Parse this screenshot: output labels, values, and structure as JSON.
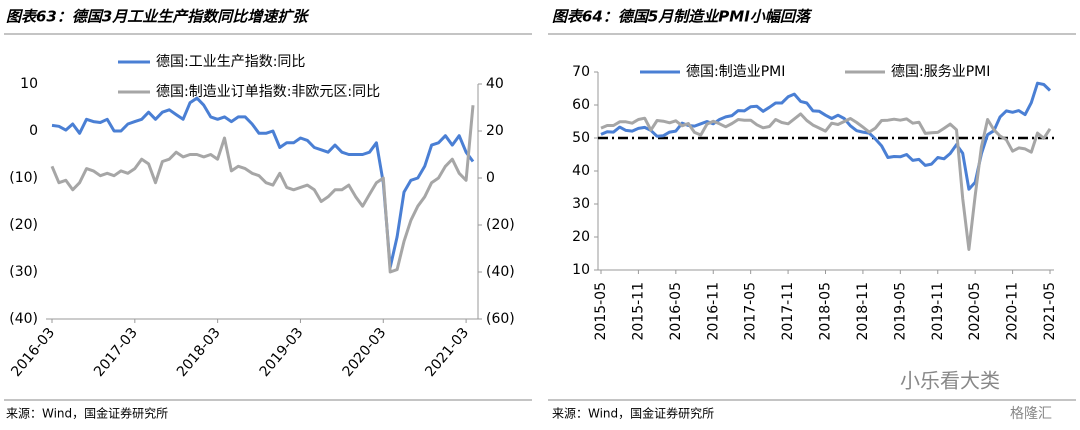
{
  "chart_data": [
    {
      "type": "line",
      "title": "图表63：德国3月工业生产指数同比增速扩张",
      "source": "来源：Wind，国金证券研究所",
      "categories": [
        "2016-03",
        null,
        null,
        null,
        null,
        null,
        null,
        null,
        null,
        null,
        null,
        null,
        "2017-03",
        null,
        null,
        null,
        null,
        null,
        null,
        null,
        null,
        null,
        null,
        null,
        "2018-03",
        null,
        null,
        null,
        null,
        null,
        null,
        null,
        null,
        null,
        null,
        null,
        "2019-03",
        null,
        null,
        null,
        null,
        null,
        null,
        null,
        null,
        null,
        null,
        null,
        "2020-03",
        null,
        null,
        null,
        null,
        null,
        null,
        null,
        null,
        null,
        null,
        null,
        "2021-03",
        null
      ],
      "series": [
        {
          "name": "德国:工业生产指数:同比",
          "color": "#4a7fd4",
          "axis": "y",
          "values": [
            1.2,
            1.0,
            0.2,
            1.5,
            -0.5,
            2.5,
            2.0,
            1.8,
            2.5,
            0.0,
            0.0,
            1.5,
            2.0,
            2.5,
            4.0,
            2.5,
            4.0,
            4.5,
            3.5,
            2.5,
            6.0,
            7.0,
            5.5,
            3.0,
            2.5,
            3.0,
            2.0,
            3.0,
            3.0,
            1.5,
            -0.5,
            -0.5,
            0.0,
            -3.5,
            -2.5,
            -2.5,
            -1.5,
            -2.0,
            -3.5,
            -4.0,
            -4.5,
            -3.0,
            -4.5,
            -5.0,
            -5.0,
            -5.0,
            -4.5,
            -2.5,
            -11.0,
            -29.0,
            -22.5,
            -13.0,
            -10.5,
            -10.0,
            -7.5,
            -3.0,
            -2.5,
            -1.0,
            -3.0,
            -1.0,
            -4.5,
            -6.5
          ]
        },
        {
          "name": "德国:制造业订单指数:非欧元区:同比",
          "color": "#a6a6a6",
          "axis": "y2",
          "values": [
            5,
            -2,
            -1,
            -5,
            -2,
            4,
            3,
            1,
            2,
            1,
            3,
            2,
            4,
            8,
            6,
            -2,
            7,
            8,
            11,
            9,
            10,
            10,
            9,
            10,
            8,
            17,
            3,
            5,
            4,
            2,
            1,
            -2,
            -3,
            2,
            -4,
            -5,
            -4,
            -3,
            -5,
            -10,
            -8,
            -5,
            -5,
            -3,
            -8,
            -12,
            -7,
            -2,
            0,
            -40,
            -39,
            -27,
            -18,
            -12,
            -8,
            -2,
            0,
            5,
            8,
            2,
            -1,
            31
          ]
        }
      ],
      "ylim": [
        -40,
        10
      ],
      "yticks": [
        10,
        0,
        {
          "value": -10,
          "label": "(10)"
        },
        {
          "value": -20,
          "label": "(20)"
        },
        {
          "value": -30,
          "label": "(30)"
        },
        {
          "value": -40,
          "label": "(40)"
        }
      ],
      "y2lim": [
        -60,
        40
      ],
      "y2ticks": [
        40,
        20,
        0,
        {
          "value": -20,
          "label": "(20)"
        },
        {
          "value": -40,
          "label": "(40)"
        },
        {
          "value": -60,
          "label": "(60)"
        }
      ],
      "negative_tick_color": "#cc0000",
      "grid": false
    },
    {
      "type": "line",
      "title": "图表64：德国5月制造业PMI小幅回落",
      "source": "来源：Wind，国金证券研究所",
      "categories": [
        "2015-05",
        null,
        null,
        null,
        null,
        null,
        "2015-11",
        null,
        null,
        null,
        null,
        null,
        "2016-05",
        null,
        null,
        null,
        null,
        null,
        "2016-11",
        null,
        null,
        null,
        null,
        null,
        "2017-05",
        null,
        null,
        null,
        null,
        null,
        "2017-11",
        null,
        null,
        null,
        null,
        null,
        "2018-05",
        null,
        null,
        null,
        null,
        null,
        "2018-11",
        null,
        null,
        null,
        null,
        null,
        "2019-05",
        null,
        null,
        null,
        null,
        null,
        "2019-11",
        null,
        null,
        null,
        null,
        null,
        "2020-05",
        null,
        null,
        null,
        null,
        null,
        "2020-11",
        null,
        null,
        null,
        null,
        null,
        "2021-05"
      ],
      "series": [
        {
          "name": "德国:制造业PMI",
          "color": "#4a7fd4",
          "axis": "y",
          "values": [
            51.1,
            51.9,
            51.8,
            53.3,
            52.3,
            52.1,
            52.9,
            53.2,
            52.3,
            50.5,
            50.7,
            51.8,
            52.1,
            54.5,
            53.8,
            53.6,
            54.3,
            55.0,
            54.3,
            55.6,
            56.4,
            56.8,
            58.3,
            58.2,
            59.5,
            59.6,
            58.1,
            59.3,
            60.6,
            60.6,
            62.5,
            63.3,
            61.1,
            60.6,
            58.2,
            58.1,
            56.9,
            55.9,
            56.9,
            55.9,
            53.7,
            52.2,
            51.8,
            51.5,
            49.7,
            47.6,
            44.1,
            44.4,
            44.3,
            45.0,
            43.2,
            43.5,
            41.7,
            42.1,
            44.1,
            43.7,
            45.3,
            48.0,
            45.4,
            34.5,
            36.6,
            45.2,
            51.0,
            52.2,
            56.4,
            58.2,
            57.8,
            58.3,
            57.1,
            60.7,
            66.6,
            66.2,
            64.4
          ]
        },
        {
          "name": "德国:服务业PMI",
          "color": "#a6a6a6",
          "axis": "y",
          "values": [
            53.0,
            53.8,
            53.8,
            54.9,
            54.9,
            54.5,
            55.6,
            56.0,
            52.4,
            55.3,
            55.1,
            54.6,
            55.2,
            53.7,
            54.4,
            51.7,
            50.9,
            54.2,
            55.1,
            54.3,
            53.4,
            54.4,
            55.6,
            55.4,
            55.4,
            54.0,
            53.1,
            53.5,
            55.6,
            54.7,
            54.3,
            55.8,
            57.3,
            55.3,
            53.9,
            53.0,
            52.1,
            54.5,
            54.1,
            55.0,
            55.9,
            54.7,
            53.3,
            51.8,
            53.0,
            55.3,
            55.4,
            55.7,
            55.4,
            55.8,
            54.5,
            54.8,
            51.4,
            51.6,
            51.7,
            52.9,
            54.2,
            52.5,
            31.7,
            16.2,
            32.6,
            47.3,
            55.6,
            52.5,
            50.6,
            49.5,
            46.0,
            47.0,
            46.7,
            45.7,
            51.5,
            49.9,
            52.8
          ]
        }
      ],
      "ylim": [
        10,
        70
      ],
      "yticks": [
        10,
        20,
        30,
        40,
        50,
        60,
        70
      ],
      "reference_line": 50,
      "grid": false
    }
  ],
  "watermark": [
    "小乐看大类",
    "格隆汇"
  ]
}
